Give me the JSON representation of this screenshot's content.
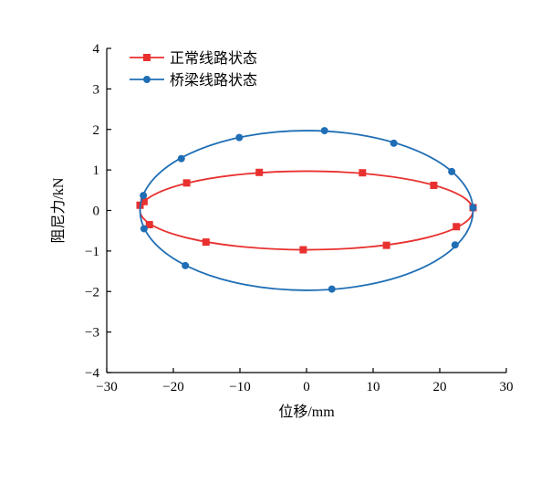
{
  "chart_data": {
    "type": "line",
    "xlabel": "位移/mm",
    "ylabel": "阻尼力/kN",
    "xlim": [
      -30,
      30
    ],
    "ylim": [
      -4,
      4
    ],
    "xticks": [
      -30,
      -20,
      -10,
      0,
      10,
      20,
      30
    ],
    "yticks": [
      -4,
      -3,
      -2,
      -1,
      0,
      1,
      2,
      3,
      4
    ],
    "xtick_labels": [
      "−30",
      "−20",
      "−10",
      "0",
      "10",
      "20",
      "30"
    ],
    "ytick_labels": [
      "−4",
      "−3",
      "−2",
      "−1",
      "0",
      "1",
      "2",
      "3",
      "4"
    ],
    "grid": false,
    "legend_position": "top-left",
    "series": [
      {
        "name": "正常线路状态",
        "color": "#e8312f",
        "marker": "square",
        "shape": "ellipse",
        "amplitude_x": 25,
        "amplitude_y": 0.97,
        "markers": [
          {
            "x": 25,
            "y": 0.07
          },
          {
            "x": 19.1,
            "y": 0.62
          },
          {
            "x": 8.4,
            "y": 0.93
          },
          {
            "x": -7.1,
            "y": 0.94
          },
          {
            "x": -18.0,
            "y": 0.68
          },
          {
            "x": -24.4,
            "y": 0.22
          },
          {
            "x": -23.6,
            "y": -0.35
          },
          {
            "x": -15.1,
            "y": -0.78
          },
          {
            "x": -0.5,
            "y": -0.97
          },
          {
            "x": 12.0,
            "y": -0.86
          },
          {
            "x": 22.5,
            "y": -0.4
          },
          {
            "x": -25,
            "y": 0.13
          }
        ]
      },
      {
        "name": "桥梁线路状态",
        "color": "#1f6eb5",
        "marker": "circle",
        "shape": "ellipse",
        "amplitude_x": 25,
        "amplitude_y": 1.97,
        "markers": [
          {
            "x": 25,
            "y": 0.07
          },
          {
            "x": 21.8,
            "y": 0.96
          },
          {
            "x": 13.1,
            "y": 1.66
          },
          {
            "x": 2.7,
            "y": 1.97
          },
          {
            "x": -10.1,
            "y": 1.8
          },
          {
            "x": -18.8,
            "y": 1.28
          },
          {
            "x": -24.5,
            "y": 0.37
          },
          {
            "x": -24.4,
            "y": -0.45
          },
          {
            "x": -18.2,
            "y": -1.36
          },
          {
            "x": 3.8,
            "y": -1.94
          },
          {
            "x": 22.3,
            "y": -0.85
          }
        ]
      }
    ]
  }
}
